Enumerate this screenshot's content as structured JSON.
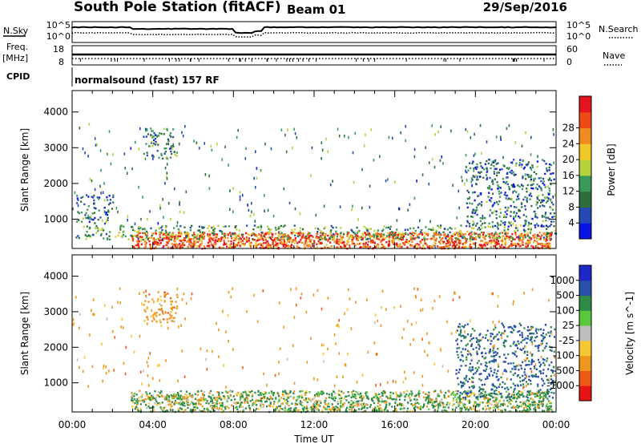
{
  "header": {
    "station": "South Pole Station (fitACF)",
    "beam": "Beam 01",
    "date": "29/Sep/2016"
  },
  "status_panels": {
    "left_labels": [
      "N.Sky",
      "Freq.",
      "[MHz]",
      "CPID"
    ],
    "right_labels": [
      "N.Search",
      "Nave"
    ],
    "noise_ticks_left": [
      "10^5",
      "10^0"
    ],
    "noise_ticks_right": [
      "10^5",
      "10^0"
    ],
    "freq_ticks": [
      "18",
      "8"
    ],
    "nave_ticks": [
      "60",
      "0"
    ],
    "cpid_text": "normalsound (fast) 157 RF"
  },
  "colors": {
    "power_scale": [
      "#0a14e6",
      "#2448b4",
      "#2e6e3c",
      "#3a9a5a",
      "#b4d23c",
      "#f0c828",
      "#f08c1e",
      "#ee4a14",
      "#e6141e"
    ],
    "velocity_scale": [
      "#e61414",
      "#ee5a14",
      "#f0961e",
      "#f5c832",
      "#bebebe",
      "#5ac83c",
      "#2e8c46",
      "#2850aa",
      "#1e28c8"
    ]
  },
  "chart_data": [
    {
      "type": "heatmap",
      "title": "Power",
      "ylabel": "Slant Range [km]",
      "xlabel": "",
      "ylim": [
        180,
        4600
      ],
      "x_ticks": [
        "00:00",
        "04:00",
        "08:00",
        "12:00",
        "16:00",
        "20:00",
        "00:00"
      ],
      "y_ticks": [
        1000,
        2000,
        3000,
        4000
      ],
      "colorbar": {
        "label": "Power [dB]",
        "range": [
          0,
          32
        ],
        "ticks": [
          4,
          8,
          12,
          16,
          20,
          24,
          28
        ]
      },
      "echo_regions": [
        {
          "start_h": 2.9,
          "end_h": 23.8,
          "range_min": 200,
          "range_max": 650,
          "value": 26
        },
        {
          "start_h": 0.0,
          "end_h": 24.0,
          "range_min": 450,
          "range_max": 850,
          "value": 12
        },
        {
          "start_h": 0.2,
          "end_h": 2.0,
          "range_min": 900,
          "range_max": 1700,
          "value": 8
        },
        {
          "start_h": 19.5,
          "end_h": 23.9,
          "range_min": 800,
          "range_max": 2700,
          "value": 8
        },
        {
          "start_h": 3.5,
          "end_h": 5.2,
          "range_min": 2700,
          "range_max": 3600,
          "value": 10
        }
      ]
    },
    {
      "type": "heatmap",
      "title": "Velocity",
      "ylabel": "Slant Range [km]",
      "xlabel": "Time UT",
      "ylim": [
        180,
        4600
      ],
      "x_ticks": [
        "00:00",
        "04:00",
        "08:00",
        "12:00",
        "16:00",
        "20:00",
        "00:00"
      ],
      "y_ticks": [
        1000,
        2000,
        3000,
        4000
      ],
      "colorbar": {
        "label": "Velocity [m s^-1]",
        "ticks": [
          "1000",
          "500",
          "100",
          "25",
          "-25",
          "-100",
          "-500",
          "-1000"
        ]
      },
      "echo_regions": [
        {
          "start_h": 2.9,
          "end_h": 23.8,
          "range_min": 200,
          "range_max": 800,
          "value": 100
        },
        {
          "start_h": 19.0,
          "end_h": 23.9,
          "range_min": 600,
          "range_max": 2700,
          "value": 600
        },
        {
          "start_h": 4.0,
          "end_h": 6.5,
          "range_min": 400,
          "range_max": 700,
          "value": -150
        },
        {
          "start_h": 3.5,
          "end_h": 5.2,
          "range_min": 2700,
          "range_max": 3600,
          "value": -300
        }
      ]
    }
  ]
}
